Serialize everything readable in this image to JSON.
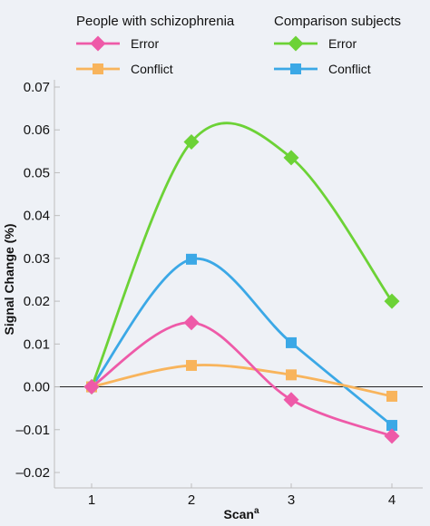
{
  "chart_data": {
    "type": "line",
    "xlabel": "Scan",
    "xlabel_superscript": "a",
    "ylabel": "Signal Change (%)",
    "categories": [
      "1",
      "2",
      "3",
      "4"
    ],
    "x": [
      1,
      2,
      3,
      4
    ],
    "ylim": [
      -0.02,
      0.07
    ],
    "yticks": [
      "0.07",
      "0.06",
      "0.05",
      "0.04",
      "0.03",
      "0.02",
      "0.01",
      "0.00",
      "–0.01",
      "–0.02"
    ],
    "ytick_values": [
      0.07,
      0.06,
      0.05,
      0.04,
      0.03,
      0.02,
      0.01,
      0.0,
      -0.01,
      -0.02
    ],
    "grid": false,
    "zero_line": true,
    "legend": {
      "placement": "top",
      "groups": [
        {
          "title": "People with schizophrenia",
          "entries": [
            "Error",
            "Conflict"
          ]
        },
        {
          "title": "Comparison subjects",
          "entries": [
            "Error",
            "Conflict"
          ]
        }
      ]
    },
    "series": [
      {
        "group": "People with schizophrenia",
        "name": "Error",
        "marker": "diamond",
        "color": "#ee5aa8",
        "values": [
          0.0,
          0.015,
          -0.003,
          -0.0115
        ]
      },
      {
        "group": "People with schizophrenia",
        "name": "Conflict",
        "marker": "square",
        "color": "#f8b45c",
        "values": [
          0.0,
          0.005,
          0.0028,
          -0.0022
        ]
      },
      {
        "group": "Comparison subjects",
        "name": "Error",
        "marker": "diamond",
        "color": "#6cd236",
        "values": [
          0.0,
          0.0572,
          0.0535,
          0.02
        ]
      },
      {
        "group": "Comparison subjects",
        "name": "Conflict",
        "marker": "square",
        "color": "#3ba8e6",
        "values": [
          0.0,
          0.0298,
          0.0103,
          -0.009
        ]
      }
    ]
  }
}
